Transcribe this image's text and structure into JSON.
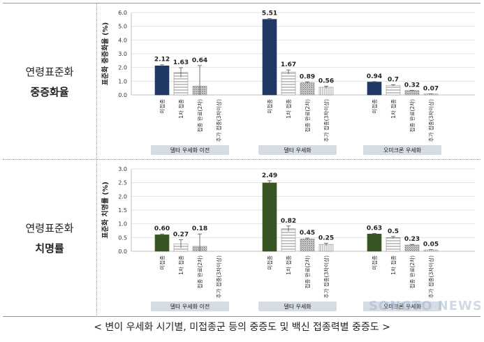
{
  "rows": [
    {
      "label_top": "연령표준화",
      "label_bottom": "중증화율"
    },
    {
      "label_top": "연령표준화",
      "label_bottom": "치명률"
    }
  ],
  "caption": "< 변이 우세화 시기별, 미접종군 등의 중증도 및 백신 접종력별 중증도 >",
  "watermark": "SONGTO NEWS",
  "colors": {
    "severe_unvacc": "#1f3864",
    "fatal_unvacc": "#375623",
    "period_box": "#d6dce4",
    "axis": "#bfbfbf"
  },
  "chart_data": [
    {
      "type": "bar",
      "ylabel": "표준화 중증화율 (%)",
      "ylim": [
        0,
        6.0
      ],
      "yticks": [
        "0.0",
        "1.0",
        "2.0",
        "3.0",
        "4.0",
        "5.0",
        "6.0"
      ],
      "categories": [
        "미접종",
        "1차 접종",
        "접종 완료(2차)",
        "추가 접종(3차이상)"
      ],
      "periods": [
        {
          "name": "델타 우세화 이전",
          "values": [
            2.12,
            1.63,
            0.64,
            null
          ],
          "labels": [
            "2.12",
            "1.63",
            "0.64",
            ""
          ],
          "errors": [
            0.08,
            0.35,
            1.5,
            0
          ]
        },
        {
          "name": "델타 우세화",
          "values": [
            5.51,
            1.67,
            0.89,
            0.56
          ],
          "labels": [
            "5.51",
            "1.67",
            "0.89",
            "0.56"
          ],
          "errors": [
            0.05,
            0.15,
            0.06,
            0.08
          ]
        },
        {
          "name": "오미크론 우세화",
          "values": [
            0.94,
            0.7,
            0.32,
            0.07
          ],
          "labels": [
            "0.94",
            "0.7",
            "0.32",
            "0.07"
          ],
          "errors": [
            0.03,
            0.05,
            0.02,
            0.01
          ]
        }
      ]
    },
    {
      "type": "bar",
      "ylabel": "표준화 치명률 (%)",
      "ylim": [
        0,
        3.0
      ],
      "yticks": [
        "0.0",
        "0.5",
        "1.0",
        "1.5",
        "2.0",
        "2.5",
        "3.0"
      ],
      "categories": [
        "미접종",
        "1차 접종",
        "접종 완료(2차)",
        "추가 접종(3차이상)"
      ],
      "periods": [
        {
          "name": "델타 우세화 이전",
          "values": [
            0.6,
            0.27,
            0.18,
            null
          ],
          "labels": [
            "0.60",
            "0.27",
            "0.18",
            ""
          ],
          "errors": [
            0.03,
            0.15,
            0.45,
            0
          ]
        },
        {
          "name": "델타 우세화",
          "values": [
            2.49,
            0.82,
            0.45,
            0.25
          ],
          "labels": [
            "2.49",
            "0.82",
            "0.45",
            "0.25"
          ],
          "errors": [
            0.08,
            0.1,
            0.03,
            0.04
          ]
        },
        {
          "name": "오미크론 우세화",
          "values": [
            0.63,
            0.5,
            0.23,
            0.05
          ],
          "labels": [
            "0.63",
            "0.5",
            "0.23",
            "0.05"
          ],
          "errors": [
            0.02,
            0.04,
            0.02,
            0.01
          ]
        }
      ]
    }
  ]
}
